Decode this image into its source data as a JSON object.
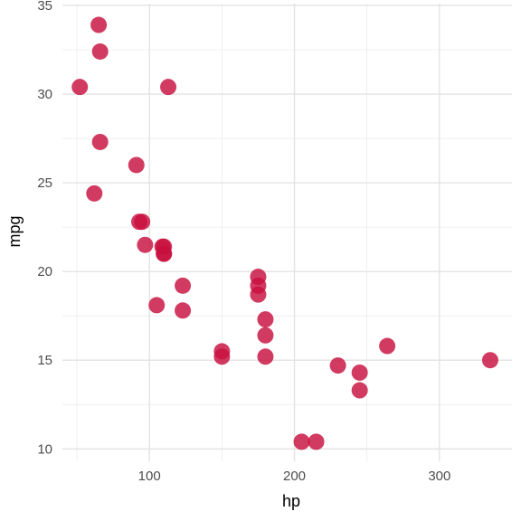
{
  "chart_data": {
    "type": "scatter",
    "xlabel": "hp",
    "ylabel": "mpg",
    "xlim": [
      40,
      350
    ],
    "ylim": [
      9.3,
      35.1
    ],
    "x_ticks": [
      100,
      200,
      300
    ],
    "x_tick_labels": [
      "100",
      "200",
      "300"
    ],
    "x_minor_ticks": [
      50,
      150,
      250
    ],
    "y_ticks": [
      10,
      15,
      20,
      25,
      30,
      35
    ],
    "y_tick_labels": [
      "10",
      "15",
      "20",
      "25",
      "30",
      "35"
    ],
    "y_minor_ticks": [
      12.5,
      17.5,
      22.5,
      27.5,
      32.5
    ],
    "grid": true,
    "point_color": "#C8103E",
    "points": [
      {
        "x": 110,
        "y": 21.0
      },
      {
        "x": 110,
        "y": 21.0
      },
      {
        "x": 93,
        "y": 22.8
      },
      {
        "x": 110,
        "y": 21.4
      },
      {
        "x": 175,
        "y": 18.7
      },
      {
        "x": 105,
        "y": 18.1
      },
      {
        "x": 245,
        "y": 14.3
      },
      {
        "x": 62,
        "y": 24.4
      },
      {
        "x": 95,
        "y": 22.8
      },
      {
        "x": 123,
        "y": 19.2
      },
      {
        "x": 123,
        "y": 17.8
      },
      {
        "x": 180,
        "y": 16.4
      },
      {
        "x": 180,
        "y": 17.3
      },
      {
        "x": 180,
        "y": 15.2
      },
      {
        "x": 205,
        "y": 10.4
      },
      {
        "x": 215,
        "y": 10.4
      },
      {
        "x": 230,
        "y": 14.7
      },
      {
        "x": 66,
        "y": 32.4
      },
      {
        "x": 52,
        "y": 30.4
      },
      {
        "x": 65,
        "y": 33.9
      },
      {
        "x": 97,
        "y": 21.5
      },
      {
        "x": 150,
        "y": 15.5
      },
      {
        "x": 150,
        "y": 15.2
      },
      {
        "x": 245,
        "y": 13.3
      },
      {
        "x": 175,
        "y": 19.2
      },
      {
        "x": 66,
        "y": 27.3
      },
      {
        "x": 91,
        "y": 26.0
      },
      {
        "x": 113,
        "y": 30.4
      },
      {
        "x": 264,
        "y": 15.8
      },
      {
        "x": 175,
        "y": 19.7
      },
      {
        "x": 335,
        "y": 15.0
      },
      {
        "x": 109,
        "y": 21.4
      }
    ]
  }
}
